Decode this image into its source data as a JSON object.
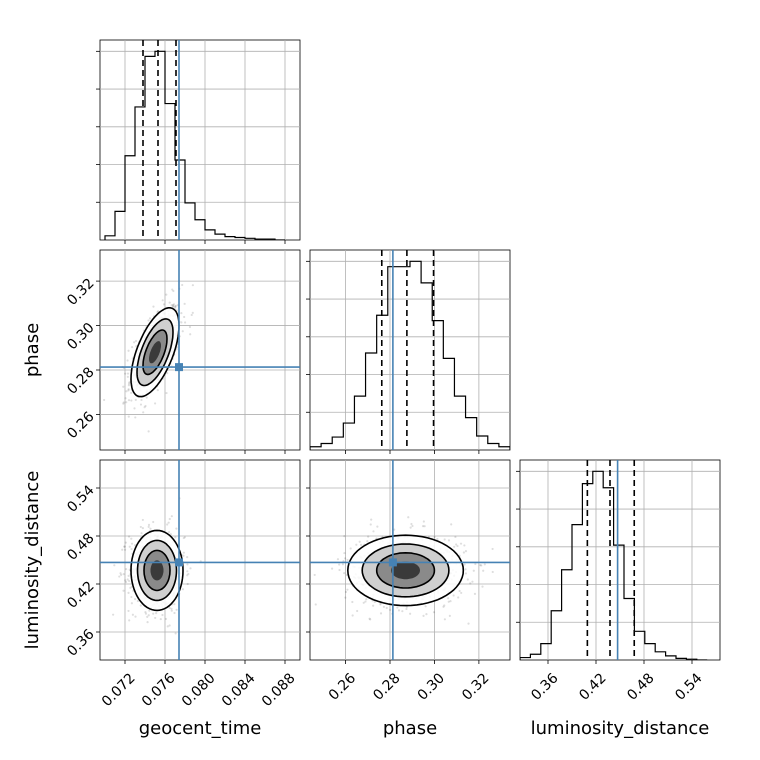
{
  "chart_data": {
    "type": "corner",
    "parameters": [
      "geocent_time",
      "phase",
      "luminosity_distance"
    ],
    "axis_labels": {
      "geocent_time": "geocent_time",
      "phase": "phase",
      "luminosity_distance": "luminosity_distance"
    },
    "ranges": {
      "geocent_time": [
        0.0695,
        0.0895
      ],
      "phase": [
        0.244,
        0.334
      ],
      "luminosity_distance": [
        0.325,
        0.575
      ]
    },
    "ticks": {
      "geocent_time": [
        0.072,
        0.076,
        0.08,
        0.084,
        0.088
      ],
      "phase": [
        0.26,
        0.28,
        0.3,
        0.32
      ],
      "luminosity_distance": [
        0.36,
        0.42,
        0.48,
        0.54
      ]
    },
    "tick_labels": {
      "geocent_time": [
        "0.072",
        "0.076",
        "0.080",
        "0.084",
        "0.088"
      ],
      "phase": [
        "0.26",
        "0.28",
        "0.30",
        "0.32"
      ],
      "luminosity_distance": [
        "0.36",
        "0.42",
        "0.48",
        "0.54"
      ]
    },
    "truths": {
      "geocent_time": 0.0774,
      "phase": 0.2813,
      "luminosity_distance": 0.447
    },
    "quantiles": {
      "geocent_time": [
        0.0738,
        0.0753,
        0.0771
      ],
      "phase": [
        0.2763,
        0.2876,
        0.2996
      ],
      "luminosity_distance": [
        0.4092,
        0.4375,
        0.4678
      ]
    },
    "histograms": {
      "geocent_time": {
        "bin_edges": [
          0.07,
          0.071,
          0.072,
          0.073,
          0.074,
          0.075,
          0.076,
          0.077,
          0.078,
          0.079,
          0.08,
          0.081,
          0.082,
          0.083,
          0.084,
          0.085,
          0.086,
          0.087,
          0.088
        ],
        "counts": [
          5,
          34,
          100,
          158,
          218,
          224,
          162,
          95,
          44,
          24,
          12,
          7,
          4,
          3,
          2,
          1,
          1,
          0
        ]
      },
      "phase": {
        "bin_edges": [
          0.244,
          0.249,
          0.254,
          0.259,
          0.264,
          0.269,
          0.274,
          0.279,
          0.284,
          0.289,
          0.294,
          0.299,
          0.304,
          0.309,
          0.314,
          0.319,
          0.324,
          0.329,
          0.334
        ],
        "counts": [
          3,
          6,
          12,
          25,
          50,
          90,
          125,
          170,
          170,
          175,
          155,
          120,
          85,
          50,
          30,
          13,
          6,
          3
        ]
      },
      "luminosity_distance": {
        "bin_edges": [
          0.325,
          0.338,
          0.351,
          0.364,
          0.377,
          0.39,
          0.403,
          0.416,
          0.429,
          0.442,
          0.455,
          0.468,
          0.481,
          0.494,
          0.507,
          0.52,
          0.533,
          0.546,
          0.559
        ],
        "counts": [
          3,
          7,
          20,
          60,
          110,
          165,
          215,
          230,
          210,
          140,
          75,
          35,
          20,
          10,
          5,
          2,
          1,
          0
        ]
      }
    },
    "pairs": [
      {
        "x": "geocent_time",
        "y": "phase",
        "peak": [
          0.075,
          0.288
        ],
        "sigma": [
          0.0012,
          0.01
        ],
        "corr": 0.6
      },
      {
        "x": "geocent_time",
        "y": "luminosity_distance",
        "peak": [
          0.0752,
          0.437
        ],
        "sigma": [
          0.0013,
          0.025
        ],
        "corr": 0.0
      },
      {
        "x": "phase",
        "y": "luminosity_distance",
        "peak": [
          0.287,
          0.437
        ],
        "sigma": [
          0.013,
          0.022
        ],
        "corr": 0.0
      }
    ],
    "truth_color": "#4682b4",
    "hist_color": "#000000",
    "grid": true
  }
}
